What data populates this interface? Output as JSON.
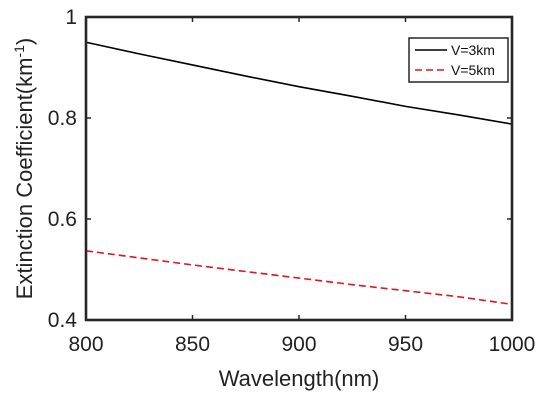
{
  "chart_data": {
    "type": "line",
    "title": "",
    "xlabel": "Wavelength(nm)",
    "ylabel": "Extinction Coefficient(km",
    "ylabel_unit_superscript": "-1",
    "ylabel_close": ")",
    "xlim": [
      800,
      1000
    ],
    "ylim": [
      0.4,
      1.0
    ],
    "xticks": [
      800,
      850,
      900,
      950,
      1000
    ],
    "yticks": [
      0.4,
      0.6,
      0.8,
      1.0
    ],
    "xtick_labels": [
      "800",
      "850",
      "900",
      "950",
      "1000"
    ],
    "ytick_labels": [
      "0.4",
      "0.6",
      "0.8",
      "1"
    ],
    "grid": false,
    "legend_position": "top-right",
    "x": [
      800,
      825,
      850,
      875,
      900,
      925,
      950,
      975,
      1000
    ],
    "series": [
      {
        "name": "V=3km",
        "values": [
          0.95,
          0.927,
          0.905,
          0.883,
          0.862,
          0.843,
          0.823,
          0.806,
          0.788
        ],
        "color": "#000000",
        "style": "solid"
      },
      {
        "name": "V=5km",
        "values": [
          0.537,
          0.523,
          0.509,
          0.496,
          0.483,
          0.47,
          0.458,
          0.446,
          0.431
        ],
        "color": "#e0141e",
        "style": "dashed"
      }
    ]
  }
}
